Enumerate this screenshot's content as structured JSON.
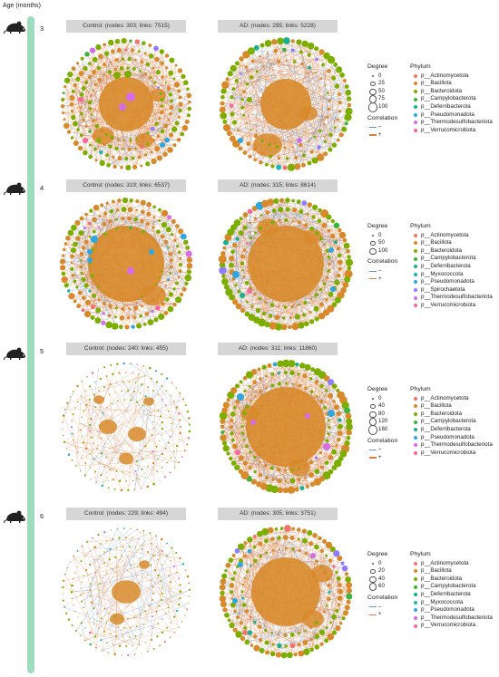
{
  "age_title": "Age (months)",
  "colors": {
    "timeline": "#9edbbf",
    "negative": "#5b9bd5",
    "positive": "#e07b39",
    "phyla": {
      "p__Actinomycetota": "#f0746e",
      "p__Bacillota": "#d8892a",
      "p__Bacteroidota": "#7cae00",
      "p__Campylobacterota": "#3db23d",
      "p__Deferribacterota": "#19b08a",
      "p__Myxococcota": "#1fb3b7",
      "p__Pseudomonadota": "#2ea7e0",
      "p__Spirochaetota": "#8f7dff",
      "p__Thermodesulfobacteriota": "#d36ee8",
      "p__Verrucomicrobiota": "#f7679b"
    }
  },
  "rows": [
    {
      "age": "3",
      "control_label": "Control: (nodes: 303; links: 7515)",
      "ad_label": "AD: (nodes: 295; links: 5228)",
      "degree_title": "Degree",
      "degree_values": [
        "0",
        "25",
        "50",
        "75",
        "100"
      ],
      "correlation_title": "Correlation",
      "corr_neg": "–",
      "corr_pos": "+",
      "phylum_title": "Phylum",
      "phyla": [
        "p__Actinomycetota",
        "p__Bacillota",
        "p__Bacteroidota",
        "p__Campylobacterota",
        "p__Deferribacterota",
        "p__Pseudomonadota",
        "p__Thermodesulfobacteriota",
        "p__Verrucomicrobiota"
      ]
    },
    {
      "age": "4",
      "control_label": "Control: (nodes: 319; links: 6537)",
      "ad_label": "AD: (nodes: 315; links: 8614)",
      "degree_title": "Degree",
      "degree_values": [
        "0",
        "50",
        "100"
      ],
      "correlation_title": "Correlation",
      "corr_neg": "–",
      "corr_pos": "+",
      "phylum_title": "Phylum",
      "phyla": [
        "p__Actinomycetota",
        "p__Bacillota",
        "p__Bacteroidota",
        "p__Campylobacterota",
        "p__Deferribacterota",
        "p__Myxococcota",
        "p__Pseudomonadota",
        "p__Spirochaetota",
        "p__Thermodesulfobacteriota",
        "p__Verrucomicrobiota"
      ]
    },
    {
      "age": "5",
      "control_label": "Control: (nodes: 240; links: 455)",
      "ad_label": "AD: (nodes: 311; links: 11860)",
      "degree_title": "Degree",
      "degree_values": [
        "0",
        "40",
        "80",
        "120",
        "160"
      ],
      "correlation_title": "Correlation",
      "corr_neg": "–",
      "corr_pos": "+",
      "phylum_title": "Phylum",
      "phyla": [
        "p__Actinomycetota",
        "p__Bacillota",
        "p__Bacteroidota",
        "p__Campylobacterota",
        "p__Deferribacterota",
        "p__Pseudomonadota",
        "p__Thermodesulfobacteriota",
        "p__Verrucomicrobiota"
      ]
    },
    {
      "age": "6",
      "control_label": "Control: (nodes: 229; links: 494)",
      "ad_label": "AD: (nodes: 305; links: 3751)",
      "degree_title": "Degree",
      "degree_values": [
        "0",
        "20",
        "40",
        "60"
      ],
      "correlation_title": "Correlation",
      "corr_neg": "–",
      "corr_pos": "+",
      "phylum_title": "Phylum",
      "phyla": [
        "p__Actinomycetota",
        "p__Bacillota",
        "p__Bacteroidota",
        "p__Campylobacterota",
        "p__Deferribacterota",
        "p__Myxococcota",
        "p__Pseudomonadota",
        "p__Thermodesulfobacteriota",
        "p__Verrucomicrobiota"
      ]
    }
  ]
}
